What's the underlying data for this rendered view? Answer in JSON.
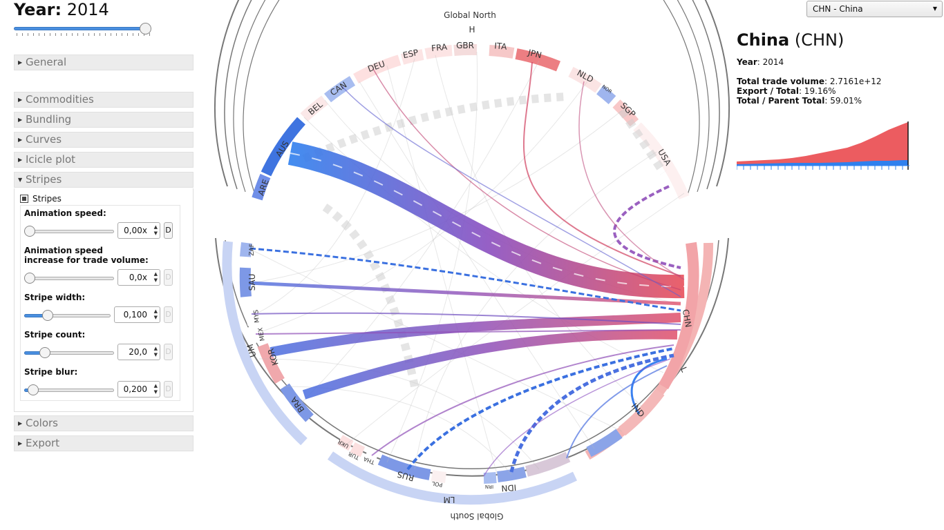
{
  "header": {
    "year_label": "Year:",
    "year_value": "2014"
  },
  "accordion": {
    "general": "General",
    "commodities": "Commodities",
    "bundling": "Bundling",
    "curves": "Curves",
    "icicle": "Icicle plot",
    "stripes": "Stripes",
    "colors": "Colors",
    "export": "Export"
  },
  "stripes": {
    "checkbox_label": "Stripes",
    "checked": true,
    "speed_label": "Animation speed:",
    "speed_value": "0,00x",
    "speed_increase_label_1": "Animation speed",
    "speed_increase_label_2": "increase for trade volume:",
    "speed_increase_value": "0,0x",
    "width_label": "Stripe width:",
    "width_value": "0,100",
    "count_label": "Stripe count:",
    "count_value": "20,0",
    "blur_label": "Stripe blur:",
    "blur_value": "0,200",
    "d_button": "D"
  },
  "selector": {
    "selected": "CHN - China"
  },
  "info": {
    "country_name": "China",
    "country_code": "(CHN)",
    "year_label": "Year",
    "year_value": ": 2014",
    "volume_label": "Total trade volume",
    "volume_value": ": 2.7161e+12",
    "export_label": "Export / Total",
    "export_value": ": 19.16%",
    "parent_label": "Total / Parent Total",
    "parent_value": ": 59.01%"
  },
  "diagram": {
    "outer_top": "Global North",
    "outer_bottom": "Global South",
    "group_h": "H",
    "group_l": "L",
    "group_um": "UM",
    "group_lm": "LM",
    "countries_north": [
      "ARE",
      "AUS",
      "BEL",
      "CAN",
      "DEU",
      "ESP",
      "FRA",
      "GBR",
      "ITA",
      "JPN",
      "NLD",
      "NOR",
      "SGP",
      "USA"
    ],
    "countries_um": [
      "ZAF",
      "SAU",
      "MYS",
      "MEX",
      "KOR",
      "BRA"
    ],
    "countries_lm": [
      "UKR",
      "TUR",
      "THA",
      "RUS",
      "POL",
      "IRN",
      "IDN"
    ],
    "countries_l": [
      "CHN",
      "IND"
    ],
    "colors": {
      "export": "#2f80ee",
      "import": "#e8505b",
      "mix": "#8a4fc0"
    }
  }
}
